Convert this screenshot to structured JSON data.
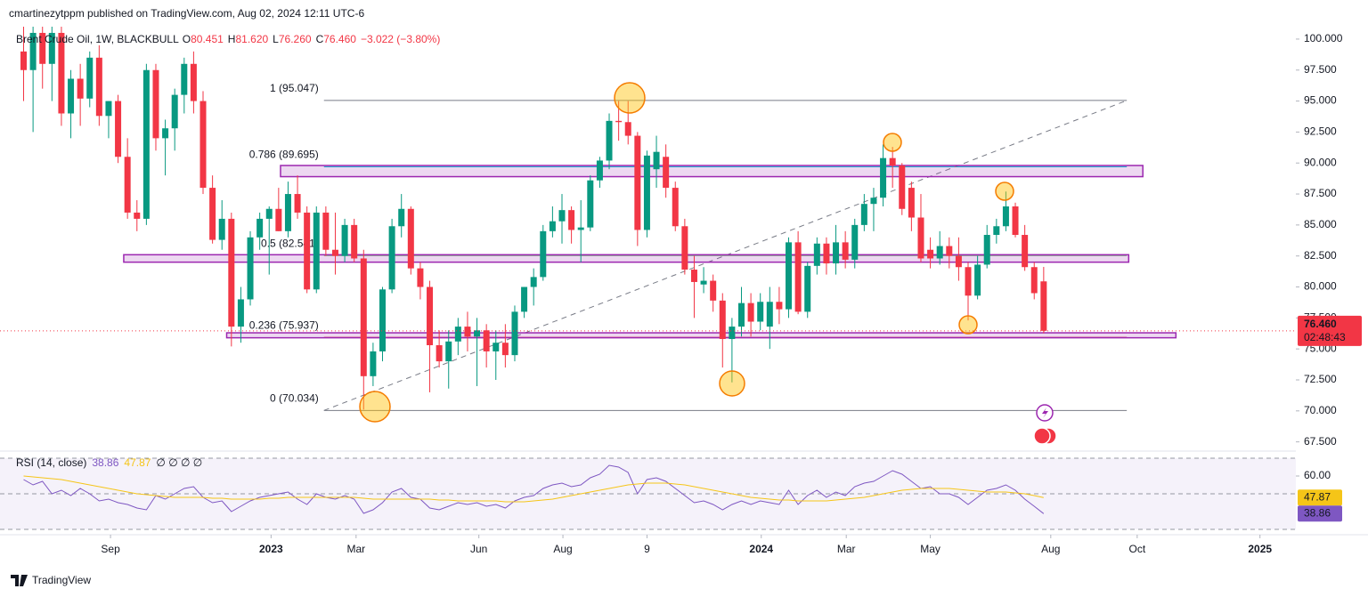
{
  "header": "cmartinezytppm published on TradingView.com, Aug 02, 2024 12:11 UTC-6",
  "footer": "TradingView",
  "chart_data": [
    {
      "type": "candlestick",
      "symbol": "Brent Crude Oil, 1W, BLACKBULL",
      "legend_ohlc": [
        {
          "key": "O",
          "text": "80.451"
        },
        {
          "key": "H",
          "text": "81.620"
        },
        {
          "key": "L",
          "text": "76.260"
        },
        {
          "key": "C",
          "text": "76.460"
        }
      ],
      "change": "−3.022 (−3.80%)",
      "up_color": "#089981",
      "down_color": "#f23645",
      "ohlc": [
        [
          99,
          101,
          95,
          97.5
        ],
        [
          97.5,
          101,
          92.5,
          100.5
        ],
        [
          100.5,
          101,
          96,
          98
        ],
        [
          98,
          101,
          95,
          100.5
        ],
        [
          100.5,
          101,
          93,
          94
        ],
        [
          94,
          97.5,
          92,
          96.8
        ],
        [
          96.8,
          98,
          93,
          95.2
        ],
        [
          95.2,
          99,
          94.5,
          98.5
        ],
        [
          98.5,
          99.5,
          93,
          93.8
        ],
        [
          93.8,
          95,
          92,
          95
        ],
        [
          95,
          95.5,
          90,
          90.5
        ],
        [
          90.5,
          92,
          85.5,
          86
        ],
        [
          86,
          87,
          84.5,
          85.5
        ],
        [
          85.5,
          98,
          85,
          97.5
        ],
        [
          97.5,
          98,
          91,
          92
        ],
        [
          92,
          93.5,
          89,
          92.8
        ],
        [
          92.8,
          96,
          91,
          95.5
        ],
        [
          95.5,
          98.5,
          94,
          98
        ],
        [
          98,
          99,
          94,
          95
        ],
        [
          95,
          95.8,
          87.5,
          88
        ],
        [
          88,
          89,
          83.5,
          83.8
        ],
        [
          83.8,
          87,
          83,
          85.5
        ],
        [
          85.5,
          86,
          75.2,
          76.8
        ],
        [
          76.8,
          80,
          75.5,
          79
        ],
        [
          79,
          84.5,
          78.5,
          84
        ],
        [
          84,
          86,
          83,
          85.5
        ],
        [
          85.5,
          86.5,
          81,
          86.3
        ],
        [
          86.3,
          88,
          84.5,
          84.5
        ],
        [
          84.5,
          88.5,
          84,
          87.5
        ],
        [
          87.5,
          89,
          85.5,
          86
        ],
        [
          86,
          86.5,
          79.5,
          79.8
        ],
        [
          79.8,
          86.5,
          79.5,
          86
        ],
        [
          86,
          86.5,
          82.5,
          83
        ],
        [
          83,
          86,
          81,
          82.5
        ],
        [
          82.5,
          85.5,
          82,
          85
        ],
        [
          85,
          85.5,
          82,
          82.3
        ],
        [
          82.3,
          83,
          70.1,
          72.8
        ],
        [
          72.8,
          75.5,
          72,
          74.8
        ],
        [
          74.8,
          80,
          74,
          79.8
        ],
        [
          79.8,
          85.5,
          79.5,
          84.9
        ],
        [
          84.9,
          87.5,
          84,
          86.3
        ],
        [
          86.3,
          86.5,
          81,
          81.5
        ],
        [
          81.5,
          82,
          79,
          80
        ],
        [
          80,
          80.5,
          71.5,
          75.3
        ],
        [
          75.3,
          76.5,
          73.5,
          74
        ],
        [
          74,
          76.5,
          71.8,
          75.6
        ],
        [
          75.6,
          77.5,
          74.5,
          76.8
        ],
        [
          76.8,
          78,
          74.8,
          76
        ],
        [
          76,
          77.5,
          72,
          76.5
        ],
        [
          76.5,
          77,
          73.5,
          74.8
        ],
        [
          74.8,
          76.5,
          72.5,
          75.5
        ],
        [
          75.5,
          77,
          73.5,
          74.5
        ],
        [
          74.5,
          78.5,
          74,
          78
        ],
        [
          78,
          80,
          77.5,
          80
        ],
        [
          80,
          81.5,
          78.5,
          80.8
        ],
        [
          80.8,
          85,
          80.5,
          84.5
        ],
        [
          84.5,
          86.5,
          84,
          85.3
        ],
        [
          85.3,
          87.5,
          83.5,
          86.2
        ],
        [
          86.2,
          86.5,
          83.5,
          84.6
        ],
        [
          84.6,
          87,
          82,
          84.8
        ],
        [
          84.8,
          89,
          84.5,
          88.6
        ],
        [
          88.6,
          90.5,
          88,
          90.2
        ],
        [
          90.2,
          94,
          89.5,
          93.4
        ],
        [
          93.4,
          95,
          91.8,
          93.3
        ],
        [
          93.3,
          95,
          91.5,
          92.2
        ],
        [
          92.2,
          92.5,
          83.3,
          84.6
        ],
        [
          84.6,
          91,
          84,
          90.6
        ],
        [
          89.5,
          92.2,
          88,
          90.9
        ],
        [
          90.5,
          91.5,
          87.2,
          88
        ],
        [
          88,
          88.5,
          84.5,
          84.9
        ],
        [
          84.9,
          85.5,
          81,
          81.4
        ],
        [
          81.4,
          82.5,
          77.5,
          80.4
        ],
        [
          80.2,
          81.6,
          79.5,
          80.5
        ],
        [
          80.5,
          81,
          78,
          78.9
        ],
        [
          78.9,
          79.5,
          73.5,
          75.8
        ],
        [
          75.8,
          77.5,
          72.3,
          76.8
        ],
        [
          76.8,
          80,
          76,
          78.7
        ],
        [
          78.7,
          79.5,
          76,
          77.2
        ],
        [
          77.2,
          79.5,
          76.5,
          78.8
        ],
        [
          76.8,
          80,
          75,
          78.8
        ],
        [
          78.8,
          80,
          77,
          78.2
        ],
        [
          78.2,
          84,
          77.5,
          83.6
        ],
        [
          83.6,
          84.5,
          77.8,
          78
        ],
        [
          78,
          82,
          77.5,
          81.7
        ],
        [
          81.7,
          84,
          81,
          83.5
        ],
        [
          83.5,
          84,
          81,
          81.9
        ],
        [
          81.9,
          85,
          81,
          83.6
        ],
        [
          83.6,
          84.5,
          81.5,
          82.2
        ],
        [
          82.2,
          85.5,
          81.5,
          85
        ],
        [
          85,
          87.5,
          84.5,
          86.7
        ],
        [
          86.7,
          88,
          84.5,
          87.2
        ],
        [
          87.2,
          91.5,
          86.5,
          90.4
        ],
        [
          90.4,
          91.3,
          88,
          89.8
        ],
        [
          89.8,
          90,
          85.8,
          86.3
        ],
        [
          88,
          88.5,
          84.5,
          85.6
        ],
        [
          85.6,
          87.5,
          82,
          82.3
        ],
        [
          83,
          84,
          81.5,
          82.3
        ],
        [
          82.3,
          84.5,
          81.8,
          83.3
        ],
        [
          83.3,
          84,
          81.5,
          82.5
        ],
        [
          82.5,
          84,
          80.5,
          81.6
        ],
        [
          81.6,
          82,
          77.3,
          79.3
        ],
        [
          79.3,
          82.5,
          79,
          81.8
        ],
        [
          81.8,
          85,
          81.5,
          84.2
        ],
        [
          84.2,
          85.5,
          83.5,
          84.9
        ],
        [
          84.9,
          87.7,
          84.5,
          86.5
        ],
        [
          86.5,
          86.8,
          84,
          84.2
        ],
        [
          84.2,
          85,
          81.3,
          81.6
        ],
        [
          81.6,
          82,
          79,
          79.5
        ],
        [
          80.451,
          81.62,
          76.26,
          76.46
        ]
      ],
      "xlim": [
        -2.5,
        134.7
      ],
      "xticks": [
        {
          "value": 9.2,
          "label": "Sep"
        },
        {
          "value": 26.2,
          "label": "2023"
        },
        {
          "value": 35.2,
          "label": "Mar"
        },
        {
          "value": 48.2,
          "label": "Jun"
        },
        {
          "value": 57.1,
          "label": "Aug"
        },
        {
          "value": 66.0,
          "label": "9"
        },
        {
          "value": 78.1,
          "label": "2024"
        },
        {
          "value": 87.1,
          "label": "Mar"
        },
        {
          "value": 96.0,
          "label": "May"
        },
        {
          "value": 108.75,
          "label": "Aug"
        },
        {
          "value": 117.9,
          "label": "Oct"
        },
        {
          "value": 130.9,
          "label": "2025"
        }
      ],
      "ylim": [
        66.9,
        101.0
      ],
      "yticks": [
        {
          "value": 67.5,
          "label": "67.500"
        },
        {
          "value": 70,
          "label": "70.000"
        },
        {
          "value": 72.5,
          "label": "72.500"
        },
        {
          "value": 75,
          "label": "75.000"
        },
        {
          "value": 77.5,
          "label": "77.500"
        },
        {
          "value": 80,
          "label": "80.000"
        },
        {
          "value": 82.5,
          "label": "82.500"
        },
        {
          "value": 85,
          "label": "85.000"
        },
        {
          "value": 87.5,
          "label": "87.500"
        },
        {
          "value": 90,
          "label": "90.000"
        },
        {
          "value": 92.5,
          "label": "92.500"
        },
        {
          "value": 95,
          "label": "95.000"
        },
        {
          "value": 97.5,
          "label": "97.500"
        },
        {
          "value": 100,
          "label": "100.000"
        }
      ],
      "fib_x": [
        31.8,
        116.8
      ],
      "fib": [
        {
          "label": "1 (95.047)",
          "value": 95.047,
          "color": "#787b86"
        },
        {
          "label": "0.786 (89.695)",
          "value": 89.695,
          "color": "#00bcd4"
        },
        {
          "label": "0.5 (82.541)",
          "value": 82.541,
          "color": "#4caf50"
        },
        {
          "label": "0.236 (75.937)",
          "value": 75.937,
          "color": "#f23645"
        },
        {
          "label": "0 (70.034)",
          "value": 70.034,
          "color": "#787b86"
        }
      ],
      "zones": [
        {
          "x": [
            27.2,
            118.5
          ],
          "y": [
            88.9,
            89.8
          ]
        },
        {
          "x": [
            10.6,
            117.0
          ],
          "y": [
            82.0,
            82.6
          ]
        },
        {
          "x": [
            21.5,
            122.0
          ],
          "y": [
            75.9,
            76.3
          ]
        }
      ],
      "zone_color": "#9c27b0",
      "last_price_label": "76.460",
      "countdown": "02:48:43"
    },
    {
      "type": "line",
      "title": "RSI (14, close)",
      "extra": "∅ ∅ ∅ ∅",
      "series": [
        {
          "color": "#7e57c2",
          "values": [
            58,
            55,
            57,
            50,
            52,
            49,
            53,
            50,
            46,
            47,
            45,
            44,
            42,
            41,
            49,
            47,
            50,
            53,
            54,
            48,
            45,
            46,
            40,
            43,
            46,
            48,
            49,
            50,
            51,
            47,
            44,
            50,
            48,
            47,
            49,
            47,
            39,
            41,
            45,
            51,
            53,
            48,
            47,
            42,
            41,
            43,
            45,
            44,
            45,
            43,
            44,
            42,
            46,
            48,
            49,
            53,
            55,
            56,
            54,
            55,
            59,
            61,
            66,
            65,
            62,
            50,
            58,
            59,
            57,
            53,
            49,
            45,
            46,
            44,
            41,
            44,
            46,
            44,
            46,
            45,
            44,
            52,
            44,
            49,
            52,
            48,
            51,
            49,
            54,
            56,
            57,
            60,
            63,
            61,
            57,
            53,
            54,
            50,
            50,
            48,
            44,
            48,
            52,
            53,
            55,
            52,
            47,
            43,
            38.86
          ]
        },
        {
          "color": "#f5c518",
          "values": [
            60,
            59.5,
            59,
            58.5,
            58,
            57,
            56,
            55,
            54,
            53,
            52,
            51,
            50,
            49.5,
            49,
            48.5,
            48,
            48,
            48,
            48,
            47.5,
            47.5,
            47,
            47,
            47,
            47,
            47.5,
            47.5,
            48,
            48,
            48,
            48,
            48,
            48,
            48,
            48,
            47.5,
            47,
            47,
            47,
            47,
            47,
            47,
            47,
            46.5,
            46.5,
            46,
            46,
            46,
            46,
            46,
            45.5,
            45.5,
            45.5,
            46,
            46.5,
            47,
            48,
            49,
            50,
            51,
            52,
            53,
            54,
            55,
            55.5,
            56,
            56,
            56,
            55.5,
            55,
            54,
            53,
            52,
            51,
            50,
            49,
            48,
            47.5,
            47,
            46.5,
            46.5,
            46,
            46,
            46,
            46,
            46.5,
            47,
            47.5,
            48,
            49,
            50,
            51,
            52,
            52.5,
            53,
            53,
            53,
            53,
            52.5,
            52,
            51.5,
            51,
            51,
            51,
            50.5,
            50,
            49,
            47.87
          ]
        }
      ],
      "ylim": [
        27.5,
        73.5
      ],
      "yticks": [
        {
          "value": 60,
          "label": "60.00"
        }
      ],
      "levels": [
        70,
        50,
        30
      ]
    }
  ]
}
